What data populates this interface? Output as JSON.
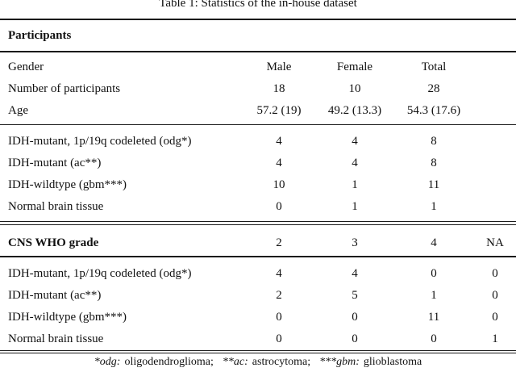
{
  "page_title": "Table 1: Statistics of the in-house dataset",
  "colors": {
    "background": "#ffffff",
    "text": "#111111",
    "rule": "#1a1a1a"
  },
  "table": {
    "sections": {
      "participants": {
        "header": "Participants",
        "rows": [
          {
            "label": "Gender",
            "v": [
              "Male",
              "Female",
              "Total",
              ""
            ]
          },
          {
            "label": "Number of participants",
            "v": [
              "18",
              "10",
              "28",
              ""
            ]
          },
          {
            "label": "Age",
            "v": [
              "57.2 (19)",
              "49.2 (13.3)",
              "54.3 (17.6)",
              ""
            ]
          }
        ]
      },
      "diagnosis": {
        "rows": [
          {
            "label": "IDH-mutant, 1p/19q codeleted (odg*)",
            "v": [
              "4",
              "4",
              "8",
              ""
            ]
          },
          {
            "label": "IDH-mutant (ac**)",
            "v": [
              "4",
              "4",
              "8",
              ""
            ]
          },
          {
            "label": "IDH-wildtype (gbm***)",
            "v": [
              "10",
              "1",
              "11",
              ""
            ]
          },
          {
            "label": "Normal brain tissue",
            "v": [
              "0",
              "1",
              "1",
              ""
            ]
          }
        ]
      },
      "grade": {
        "header": {
          "label": "CNS WHO grade",
          "v": [
            "2",
            "3",
            "4",
            "NA"
          ]
        },
        "rows": [
          {
            "label": "IDH-mutant, 1p/19q codeleted (odg*)",
            "v": [
              "4",
              "4",
              "0",
              "0"
            ]
          },
          {
            "label": "IDH-mutant (ac**)",
            "v": [
              "2",
              "5",
              "1",
              "0"
            ]
          },
          {
            "label": "IDH-wildtype (gbm***)",
            "v": [
              "0",
              "0",
              "11",
              "0"
            ]
          },
          {
            "label": "Normal brain tissue",
            "v": [
              "0",
              "0",
              "0",
              "1"
            ]
          }
        ]
      }
    },
    "footnote": {
      "items": [
        {
          "abbr": "*odg:",
          "text": "oligodendroglioma;"
        },
        {
          "abbr": "**ac:",
          "text": "astrocytoma;"
        },
        {
          "abbr": "***gbm:",
          "text": "glioblastoma"
        }
      ]
    }
  }
}
